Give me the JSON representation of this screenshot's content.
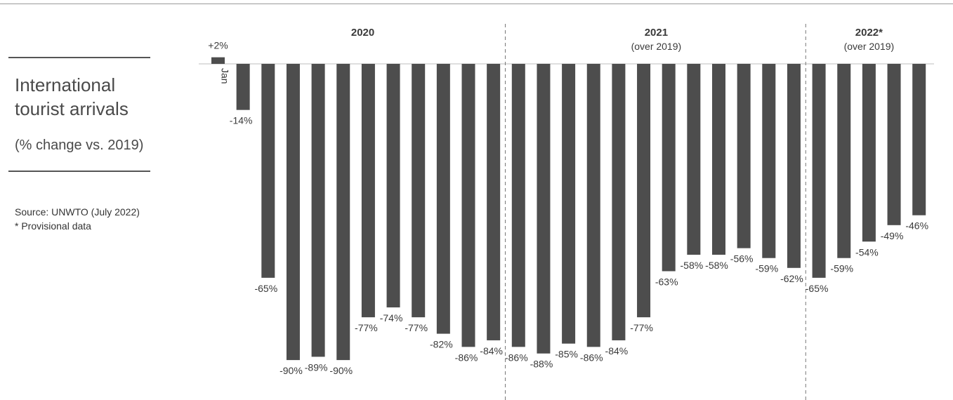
{
  "sidebar": {
    "title_line1": "International",
    "title_line2": "tourist arrivals",
    "subtitle": "(% change vs. 2019)",
    "source": "Source: UNWTO (July 2022)",
    "note": "* Provisional data"
  },
  "chart_data": {
    "type": "bar",
    "groups": [
      {
        "label": "2020",
        "sublabel": ""
      },
      {
        "label": "2021",
        "sublabel": "(over 2019)"
      },
      {
        "label": "2022*",
        "sublabel": "(over 2019)"
      }
    ],
    "first_category_label": "Jan",
    "values": [
      2,
      -14,
      -65,
      -90,
      -89,
      -90,
      -77,
      -74,
      -77,
      -82,
      -86,
      -84,
      -86,
      -88,
      -85,
      -86,
      -84,
      -77,
      -63,
      -58,
      -58,
      -56,
      -59,
      -62,
      -65,
      -59,
      -54,
      -49,
      -46
    ],
    "data_labels": [
      "+2%",
      "-14%",
      "-65%",
      "-90%",
      "-89%",
      "-90%",
      "-77%",
      "-74%",
      "-77%",
      "-82%",
      "-86%",
      "-84%",
      "-86%",
      "-88%",
      "-85%",
      "-86%",
      "-84%",
      "-77%",
      "-63%",
      "-58%",
      "-58%",
      "-56%",
      "-59%",
      "-62%",
      "-65%",
      "-59%",
      "-54%",
      "-49%",
      "-46%"
    ],
    "group_sizes": [
      12,
      12,
      5
    ],
    "bar_color": "#4d4d4d",
    "ylim": [
      -100,
      5
    ]
  }
}
